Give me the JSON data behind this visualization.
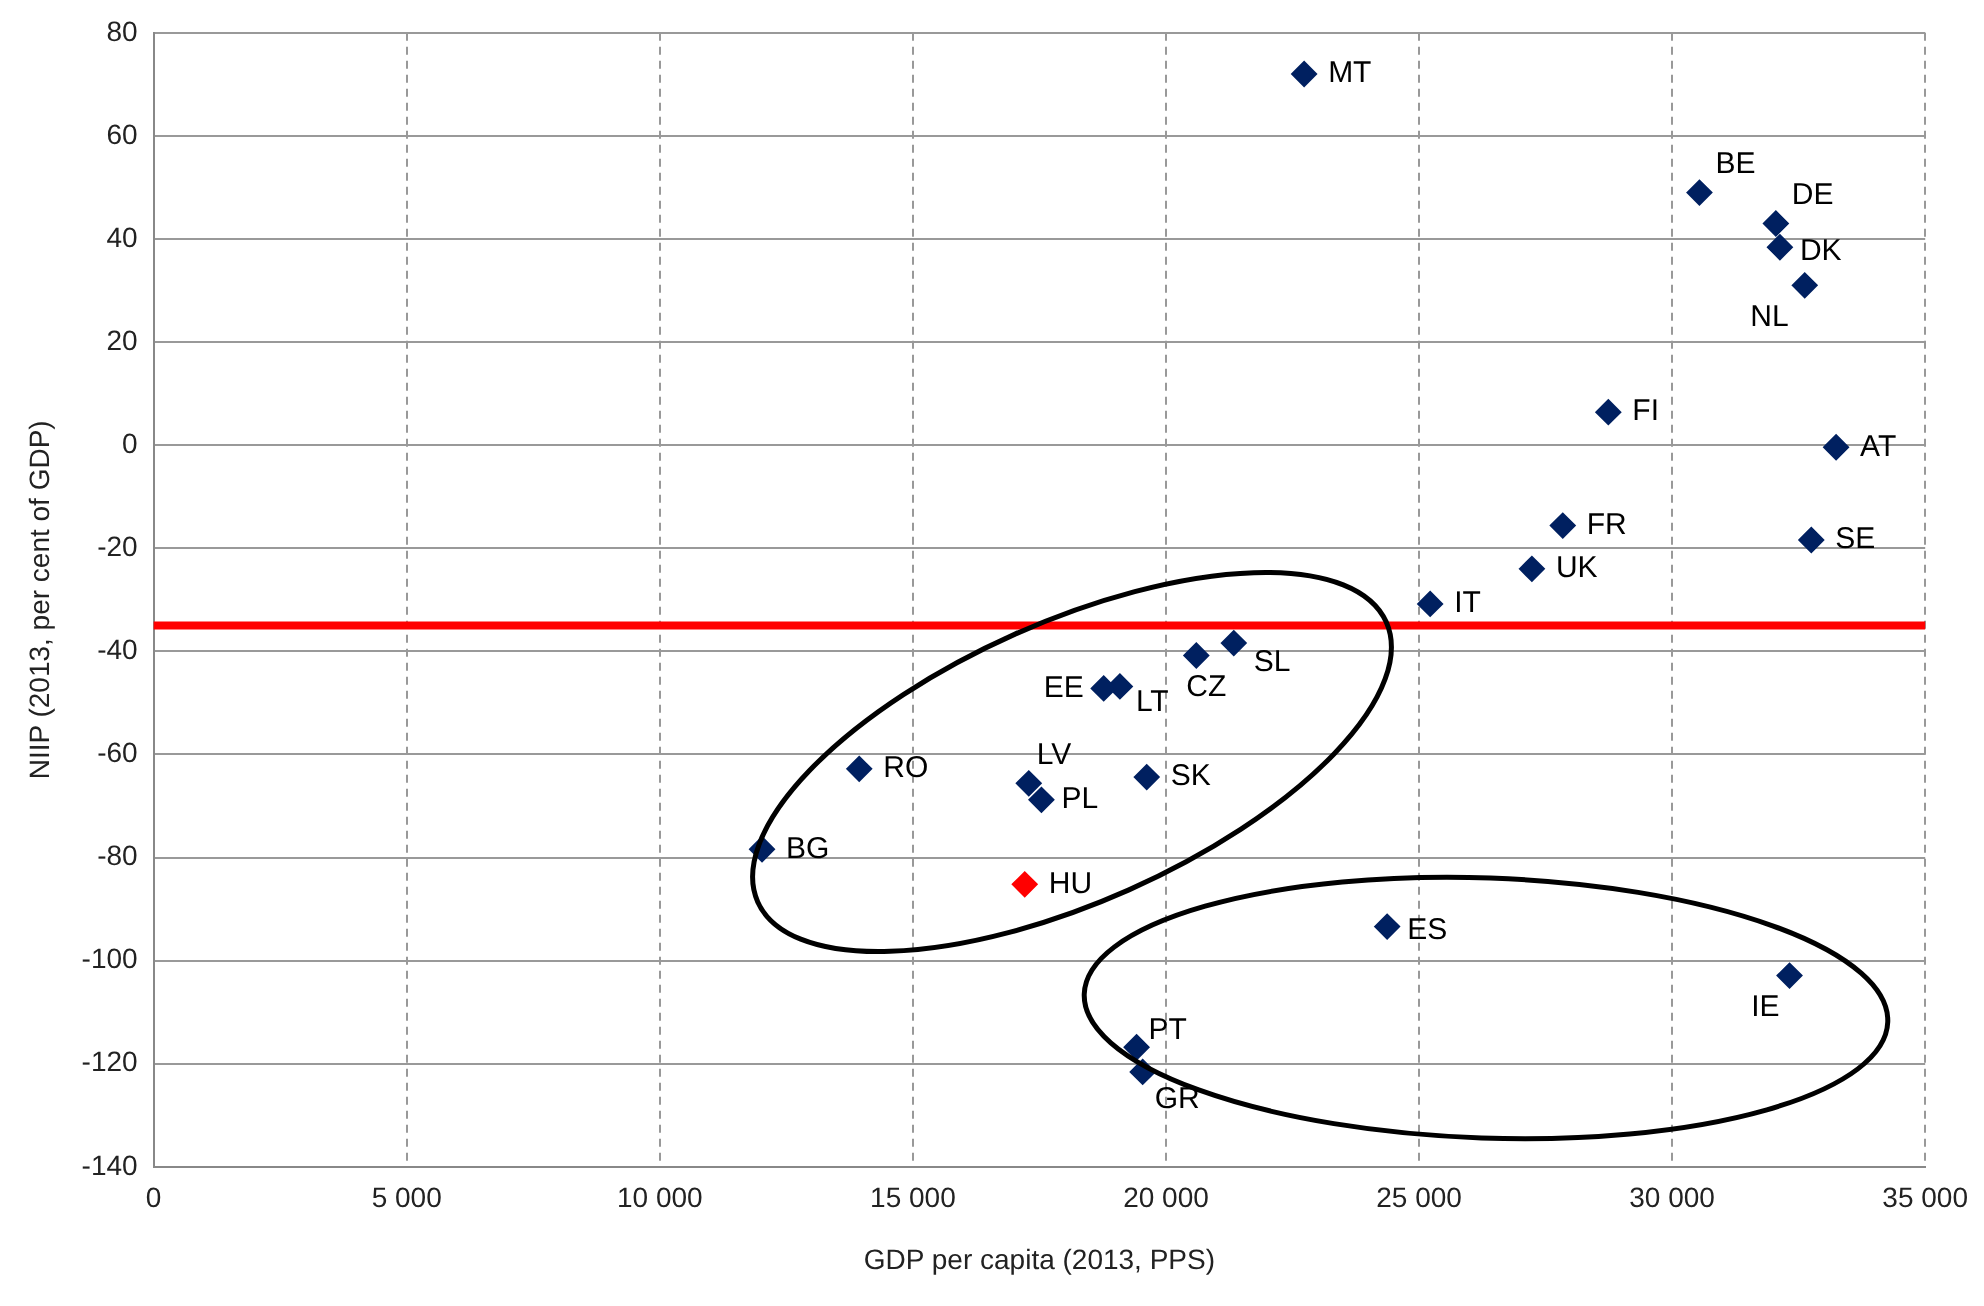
{
  "chart_data": {
    "type": "scatter",
    "xlabel": "GDP per capita (2013, PPS)",
    "ylabel": "NIIP (2013, per cent of GDP)",
    "x": [
      22730,
      30540,
      32050,
      32130,
      32620,
      28740,
      33240,
      27840,
      32750,
      27230,
      25220,
      21340,
      20600,
      19090,
      18770,
      13940,
      17290,
      17540,
      19620,
      12020,
      17210,
      24370,
      32320,
      19420,
      19540
    ],
    "series": [
      {
        "values": [
          72,
          49,
          43,
          38.4,
          31,
          6.4,
          -0.4,
          -15.6,
          -18.4,
          -24,
          -30.8,
          -38.4,
          -40.8,
          -46.8,
          -47.2,
          -62.8,
          -65.6,
          -68.8,
          -64.4,
          -78.4,
          -85.2,
          -93.4,
          -102.9,
          -116.8,
          -121.6
        ],
        "colors": [
          "#002060",
          "#002060",
          "#002060",
          "#002060",
          "#002060",
          "#002060",
          "#002060",
          "#002060",
          "#002060",
          "#002060",
          "#002060",
          "#002060",
          "#002060",
          "#002060",
          "#002060",
          "#002060",
          "#002060",
          "#002060",
          "#002060",
          "#002060",
          "#ff0000",
          "#002060",
          "#002060",
          "#002060",
          "#002060"
        ]
      }
    ],
    "annotations": [
      {
        "text": "MT",
        "x": 22730,
        "y": 72
      },
      {
        "text": "BE",
        "x": 30540,
        "y": 49
      },
      {
        "text": "DE",
        "x": 32050,
        "y": 43
      },
      {
        "text": "DK",
        "x": 32130,
        "y": 38.4
      },
      {
        "text": "NL",
        "x": 32620,
        "y": 31
      },
      {
        "text": "FI",
        "x": 28740,
        "y": 6.4
      },
      {
        "text": "AT",
        "x": 33240,
        "y": -0.4
      },
      {
        "text": "FR",
        "x": 27840,
        "y": -15.6
      },
      {
        "text": "SE",
        "x": 32750,
        "y": -18.4
      },
      {
        "text": "UK",
        "x": 27230,
        "y": -24
      },
      {
        "text": "IT",
        "x": 25220,
        "y": -30.8
      },
      {
        "text": "SL",
        "x": 21340,
        "y": -38.4
      },
      {
        "text": "CZ",
        "x": 20600,
        "y": -40.8
      },
      {
        "text": "LT",
        "x": 19090,
        "y": -46.8
      },
      {
        "text": "EE",
        "x": 18770,
        "y": -47.2
      },
      {
        "text": "RO",
        "x": 13940,
        "y": -62.8
      },
      {
        "text": "LV",
        "x": 17290,
        "y": -65.6
      },
      {
        "text": "PL",
        "x": 17540,
        "y": -68.8
      },
      {
        "text": "SK",
        "x": 19620,
        "y": -64.4
      },
      {
        "text": "BG",
        "x": 12020,
        "y": -78.4
      },
      {
        "text": "HU",
        "x": 17210,
        "y": -85.2
      },
      {
        "text": "ES",
        "x": 24370,
        "y": -93.4
      },
      {
        "text": "IE",
        "x": 32320,
        "y": -102.9
      },
      {
        "text": "PT",
        "x": 19420,
        "y": -116.8
      },
      {
        "text": "GR",
        "x": 19540,
        "y": -121.6
      }
    ],
    "ref_lines": [
      {
        "axis": "y",
        "value": -35,
        "color": "#ff0000"
      }
    ],
    "xlim": [
      0,
      35000
    ],
    "ylim": [
      -140,
      80
    ],
    "xticks": [
      0,
      {
        "value": 5000,
        "label": "5 000"
      },
      {
        "value": 10000,
        "label": "10 000"
      },
      {
        "value": 15000,
        "label": "15 000"
      },
      {
        "value": 20000,
        "label": "20 000"
      },
      {
        "value": 25000,
        "label": "25 000"
      },
      {
        "value": 30000,
        "label": "30 000"
      },
      {
        "value": 35000,
        "label": "35 000"
      }
    ],
    "yticks": [
      -140,
      -120,
      -100,
      -80,
      -60,
      -40,
      -20,
      0,
      20,
      40,
      60,
      80
    ],
    "grid": true,
    "legend": false,
    "marker": "diamond"
  }
}
